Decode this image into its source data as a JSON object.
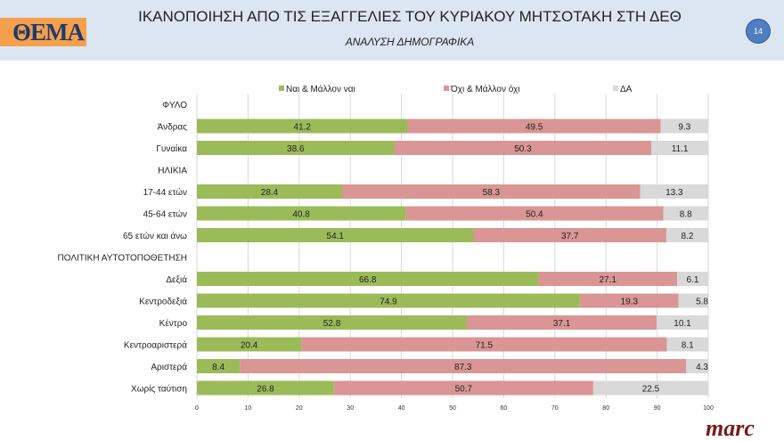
{
  "header": {
    "title": "ΙΚΑΝΟΠΟΙΗΣΗ ΑΠΟ ΤΙΣ ΕΞΑΓΓΕΛΙΕΣ ΤΟΥ ΚΥΡΙΑΚΟΥ ΜΗΤΣΟΤΑΚΗ ΣΤΗ ΔΕΘ",
    "subtitle": "ΑΝΑΛΥΣΗ ΔΗΜΟΓΡΑΦΙΚΑ",
    "page_number": "14",
    "logo": "ΘΕΜΑ",
    "brand": "marc"
  },
  "chart_data": {
    "type": "bar",
    "orientation": "horizontal",
    "stacked": true,
    "xlim": [
      0,
      100
    ],
    "xticks": [
      0,
      10,
      20,
      30,
      40,
      50,
      60,
      70,
      80,
      90,
      100
    ],
    "grid": true,
    "legend": "top",
    "categories": [
      "ΦΥΛΟ",
      "Άνδρας",
      "Γυναίκα",
      "ΗΛΙΚΙΑ",
      "17-44 ετών",
      "45-64 ετών",
      "65 ετών και άνω",
      "ΠΟΛΙΤΙΚΗ ΑΥΤΟΤΟΠΟΘΕΤΗΣΗ",
      "Δεξιά",
      "Κεντροδεξιά",
      "Κέντρο",
      "Κεντροαριστερά",
      "Αριστερά",
      "Χωρίς ταύτιση"
    ],
    "series": [
      {
        "name": "Ναι & Μάλλον ναι",
        "color": "#9bbb59",
        "values": [
          null,
          41.2,
          38.6,
          null,
          28.4,
          40.8,
          54.1,
          null,
          66.8,
          74.9,
          52.8,
          20.4,
          8.4,
          26.8
        ]
      },
      {
        "name": "Όχι & Μάλλον όχι",
        "color": "#d99694",
        "values": [
          null,
          49.5,
          50.3,
          null,
          58.3,
          50.4,
          37.7,
          null,
          27.1,
          19.3,
          37.1,
          71.5,
          87.3,
          50.7
        ]
      },
      {
        "name": "ΔΑ",
        "color": "#d9d9d9",
        "values": [
          null,
          9.3,
          11.1,
          null,
          13.3,
          8.8,
          8.2,
          null,
          6.1,
          5.8,
          10.1,
          8.1,
          4.3,
          22.5
        ]
      }
    ]
  }
}
